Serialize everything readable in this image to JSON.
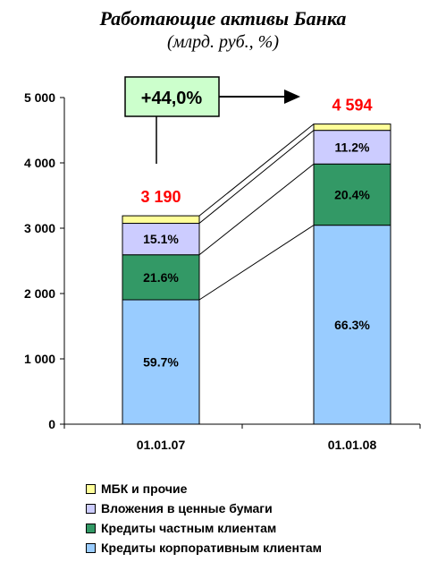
{
  "title": "Работающие активы Банка",
  "subtitle": "(млрд. руб., %)",
  "growth_label": "+44,0%",
  "chart_data": {
    "type": "bar",
    "stacked": true,
    "categories": [
      "01.01.07",
      "01.01.08"
    ],
    "totals": [
      3190,
      4594
    ],
    "total_labels": [
      "3 190",
      "4 594"
    ],
    "ylim": [
      0,
      5000
    ],
    "yticks": [
      0,
      1000,
      2000,
      3000,
      4000,
      5000
    ],
    "ytick_labels": [
      "0",
      "1 000",
      "2 000",
      "3 000",
      "4 000",
      "5 000"
    ],
    "series": [
      {
        "name": "Кредиты корпоративным клиентам",
        "values": [
          1904,
          3046
        ],
        "labels": [
          "59.7%",
          "66.3%"
        ],
        "color": "#99ccff"
      },
      {
        "name": "Кредиты частным клиентам",
        "values": [
          689,
          937
        ],
        "labels": [
          "21.6%",
          "20.4%"
        ],
        "color": "#339966"
      },
      {
        "name": "Вложения в ценные бумаги",
        "values": [
          482,
          515
        ],
        "labels": [
          "15.1%",
          "11.2%"
        ],
        "color": "#ccccff"
      },
      {
        "name": "МБК и прочие",
        "values": [
          115,
          96
        ],
        "labels": [
          "",
          ""
        ],
        "color": "#ffff99"
      }
    ],
    "legend_order": [
      3,
      2,
      1,
      0
    ],
    "legend_position": "bottom",
    "total_label_color": "#ff0000",
    "growth_box_color": "#ccffcc"
  }
}
